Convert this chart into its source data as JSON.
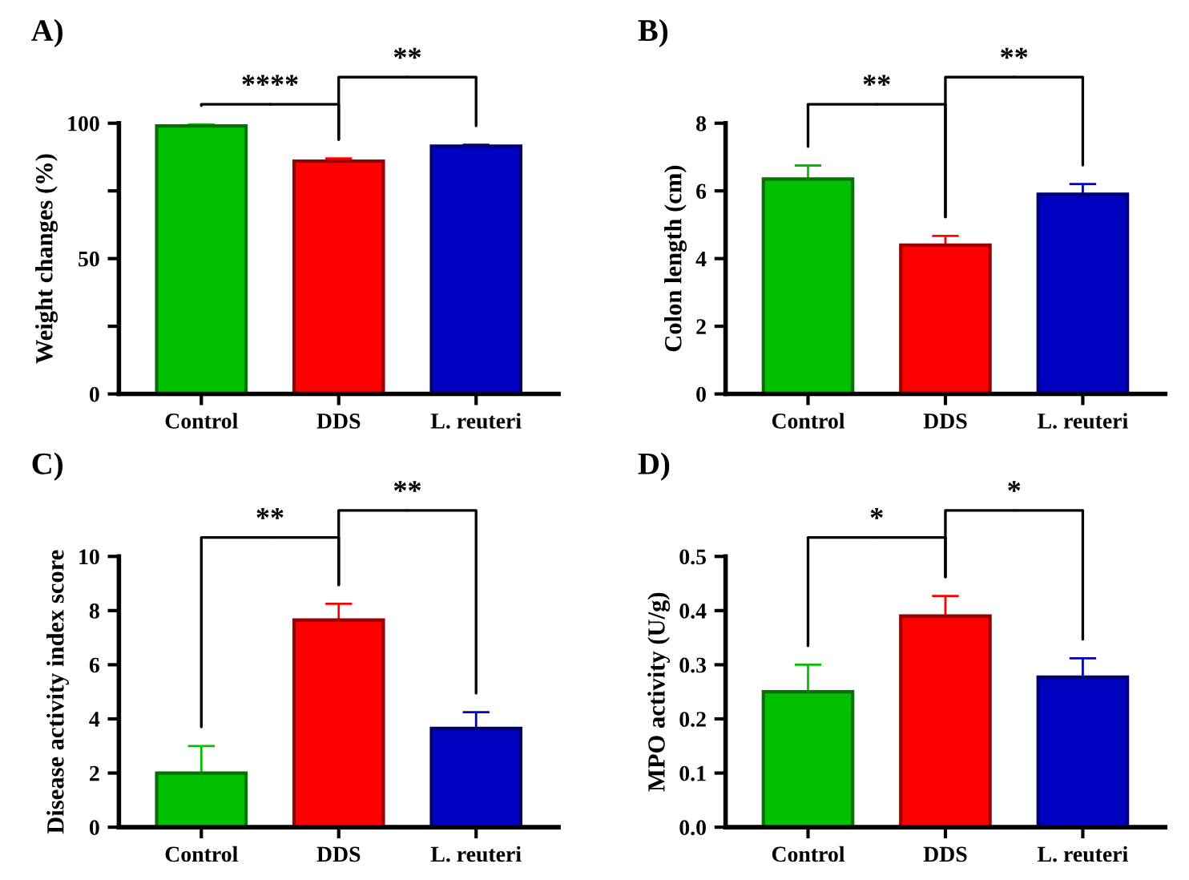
{
  "chart_data": [
    {
      "type": "bar",
      "title": "A)",
      "ylabel": "Weight changes (%)",
      "categories": [
        "Control",
        "DDS",
        "L. reuteri"
      ],
      "values": [
        99,
        86,
        91.5
      ],
      "errors": [
        [
          99,
          99.5
        ],
        [
          86,
          87
        ],
        [
          91.5,
          92
        ]
      ],
      "colors": [
        "#00c000",
        "#ff0000",
        "#0000c0"
      ],
      "ylim": [
        0,
        100
      ],
      "yticks": [
        0,
        {
          "value": 25,
          "label": null
        },
        50,
        {
          "value": 75,
          "label": null
        },
        100
      ],
      "annotations": [
        "****",
        "**"
      ],
      "grid": false,
      "legend": false
    },
    {
      "type": "bar",
      "title": "B)",
      "ylabel": "Colon length (cm)",
      "categories": [
        "Control",
        "DDS",
        "L. reuteri"
      ],
      "values": [
        6.35,
        4.4,
        5.9
      ],
      "errors": [
        [
          6.35,
          6.75
        ],
        [
          4.4,
          4.67
        ],
        [
          5.9,
          6.2
        ]
      ],
      "colors": [
        "#00c000",
        "#ff0000",
        "#0000c0"
      ],
      "ylim": [
        0,
        8
      ],
      "yticks": [
        0,
        2,
        4,
        6,
        8
      ],
      "annotations": [
        "**",
        "**"
      ],
      "grid": false,
      "legend": false
    },
    {
      "type": "bar",
      "title": "C)",
      "ylabel": "Disease activity index score",
      "categories": [
        "Control",
        "DDS",
        "L. reuteri"
      ],
      "values": [
        2,
        7.65,
        3.65
      ],
      "errors": [
        [
          2,
          3.0
        ],
        [
          7.65,
          8.25
        ],
        [
          3.65,
          4.25
        ]
      ],
      "colors": [
        "#00c000",
        "#ff0000",
        "#0000c0"
      ],
      "ylim": [
        0,
        10
      ],
      "yticks": [
        0,
        2,
        4,
        6,
        8,
        10
      ],
      "annotations": [
        "**",
        "**"
      ],
      "grid": false,
      "legend": false
    },
    {
      "type": "bar",
      "title": "D)",
      "ylabel": "MPO activity (U/g)",
      "categories": [
        "Control",
        "DDS",
        "L. reuteri"
      ],
      "values": [
        0.25,
        0.39,
        0.277
      ],
      "errors": [
        [
          0.25,
          0.3
        ],
        [
          0.39,
          0.427
        ],
        [
          0.277,
          0.312
        ]
      ],
      "colors": [
        "#00c000",
        "#ff0000",
        "#0000c0"
      ],
      "ylim": [
        0,
        0.5
      ],
      "yticks": [
        {
          "value": 0,
          "label": "0.0"
        },
        0.1,
        0.2,
        0.3,
        0.4,
        0.5
      ],
      "annotations": [
        "*",
        "*"
      ],
      "grid": false,
      "legend": false
    }
  ]
}
